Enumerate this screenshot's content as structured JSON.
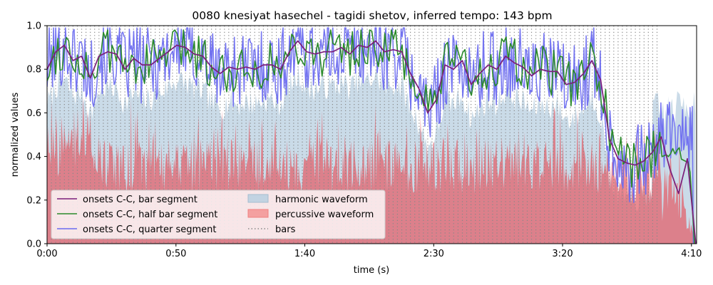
{
  "chart_data": {
    "type": "line",
    "title": "0080 knesiyat hasechel - tagidi shetov, inferred tempo: 143 bpm",
    "xlabel": "time (s)",
    "ylabel": "normalized values",
    "xlim": [
      0,
      252
    ],
    "ylim": [
      0,
      1.0
    ],
    "x_ticks": [
      {
        "value": 0,
        "label": "0:00"
      },
      {
        "value": 50,
        "label": "0:50"
      },
      {
        "value": 100,
        "label": "1:40"
      },
      {
        "value": 150,
        "label": "2:30"
      },
      {
        "value": 200,
        "label": "3:20"
      },
      {
        "value": 250,
        "label": "4:10"
      }
    ],
    "y_ticks": [
      {
        "value": 0.0,
        "label": "0.0"
      },
      {
        "value": 0.2,
        "label": "0.2"
      },
      {
        "value": 0.4,
        "label": "0.4"
      },
      {
        "value": 0.6,
        "label": "0.6"
      },
      {
        "value": 0.8,
        "label": "0.8"
      },
      {
        "value": 1.0,
        "label": "1.0"
      }
    ],
    "legend_placement": "lower-left",
    "bar_interval_s": 1.6783,
    "bars_end_s": 238.3,
    "series": [
      {
        "name": "onsets C-C, bar segment",
        "kind": "line",
        "color": "#7b1e7a",
        "x": [
          0,
          3.4,
          6.7,
          10.1,
          13.4,
          16.8,
          20.1,
          23.5,
          26.9,
          30.2,
          33.6,
          36.9,
          40.3,
          43.6,
          47.0,
          50.3,
          53.7,
          57.1,
          60.4,
          63.8,
          67.1,
          70.5,
          73.8,
          77.2,
          80.6,
          83.9,
          87.3,
          90.6,
          94.0,
          97.3,
          100.7,
          104.0,
          107.4,
          110.8,
          114.1,
          117.5,
          120.8,
          124.2,
          127.5,
          130.9,
          134.3,
          137.6,
          141.0,
          144.3,
          147.7,
          151.0,
          154.4,
          157.7,
          161.1,
          164.5,
          167.8,
          171.2,
          174.5,
          177.9,
          181.2,
          184.6,
          188.0,
          191.3,
          194.7,
          198.0,
          201.4,
          204.7,
          208.1,
          211.4,
          214.8,
          218.2,
          221.5,
          224.9,
          228.2,
          231.6,
          234.9,
          238.3,
          241.7,
          245.0,
          248.4,
          251.7
        ],
        "y": [
          0.8,
          0.88,
          0.91,
          0.84,
          0.86,
          0.76,
          0.86,
          0.88,
          0.87,
          0.8,
          0.85,
          0.82,
          0.82,
          0.85,
          0.88,
          0.91,
          0.9,
          0.87,
          0.86,
          0.81,
          0.78,
          0.81,
          0.8,
          0.81,
          0.8,
          0.82,
          0.82,
          0.8,
          0.88,
          0.93,
          0.88,
          0.87,
          0.88,
          0.88,
          0.9,
          0.87,
          0.91,
          0.9,
          0.93,
          0.88,
          0.89,
          0.88,
          0.78,
          0.71,
          0.6,
          0.66,
          0.82,
          0.8,
          0.84,
          0.73,
          0.78,
          0.82,
          0.8,
          0.86,
          0.83,
          0.81,
          0.77,
          0.8,
          0.79,
          0.79,
          0.73,
          0.74,
          0.78,
          0.84,
          0.75,
          0.48,
          0.39,
          0.37,
          0.36,
          0.38,
          0.42,
          0.49,
          0.34,
          0.23,
          0.39,
          0.0
        ]
      },
      {
        "name": "onsets C-C, half bar segment",
        "kind": "line",
        "color": "#2a8a2a"
      },
      {
        "name": "onsets C-C, quarter segment",
        "kind": "line",
        "color": "#6b6bf0"
      },
      {
        "name": "harmonic waveform",
        "kind": "area",
        "color": "#b8cfe0"
      },
      {
        "name": "percussive waveform",
        "kind": "area",
        "color": "#f08080"
      },
      {
        "name": "bars",
        "kind": "vlines",
        "color": "#888888"
      }
    ]
  }
}
